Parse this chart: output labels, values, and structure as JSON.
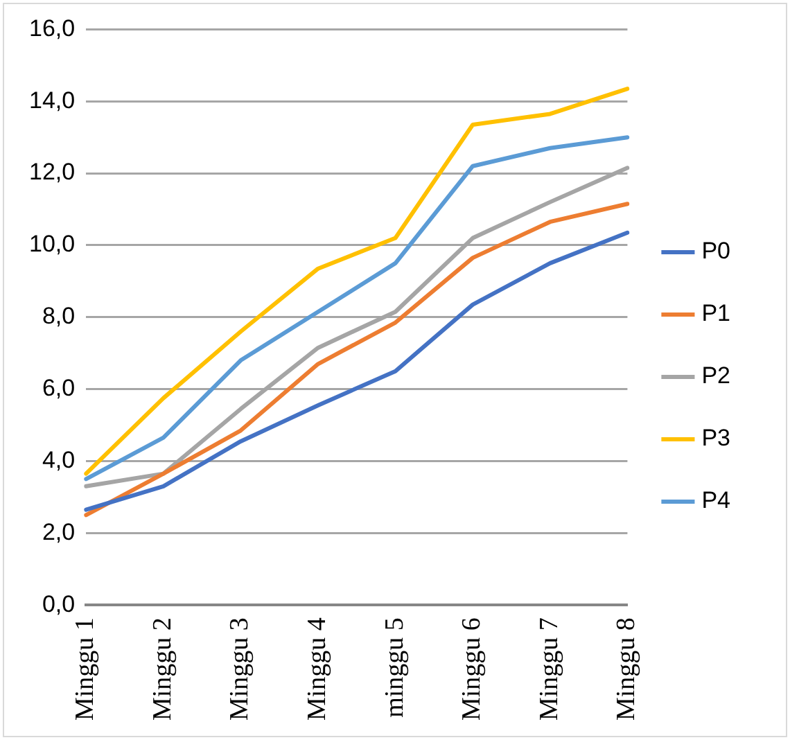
{
  "chart_data": {
    "type": "line",
    "categories": [
      "Minggu 1",
      "Minggu 2",
      "Minggu 3",
      "Minggu 4",
      "minggu 5",
      "Minggu 6",
      "Minggu 7",
      "Minggu 8"
    ],
    "series": [
      {
        "name": "P0",
        "color": "#4472c4",
        "values": [
          2.65,
          3.3,
          4.55,
          5.55,
          6.5,
          8.35,
          9.5,
          10.35
        ]
      },
      {
        "name": "P1",
        "color": "#ed7d31",
        "values": [
          2.5,
          3.65,
          4.85,
          6.7,
          7.85,
          9.65,
          10.65,
          11.15
        ]
      },
      {
        "name": "P2",
        "color": "#a5a5a5",
        "values": [
          3.3,
          3.65,
          5.45,
          7.15,
          8.15,
          10.2,
          11.2,
          12.15
        ]
      },
      {
        "name": "P3",
        "color": "#ffc000",
        "values": [
          3.65,
          5.75,
          7.6,
          9.35,
          10.2,
          13.35,
          13.65,
          14.35
        ]
      },
      {
        "name": "P4",
        "color": "#5b9bd5",
        "values": [
          3.5,
          4.65,
          6.8,
          8.15,
          9.5,
          12.2,
          12.7,
          13.0
        ]
      }
    ],
    "ylim": [
      0,
      16
    ],
    "yticks": [
      {
        "value": 0,
        "label": "0,0"
      },
      {
        "value": 2,
        "label": "2,0"
      },
      {
        "value": 4,
        "label": "4,0"
      },
      {
        "value": 6,
        "label": "6,0"
      },
      {
        "value": 8,
        "label": "8,0"
      },
      {
        "value": 10,
        "label": "10,0"
      },
      {
        "value": 12,
        "label": "12,0"
      },
      {
        "value": 14,
        "label": "14,0"
      },
      {
        "value": 16,
        "label": "16,0"
      }
    ],
    "grid": "y",
    "legend": "right",
    "marker": "none",
    "line_style": "solid"
  }
}
